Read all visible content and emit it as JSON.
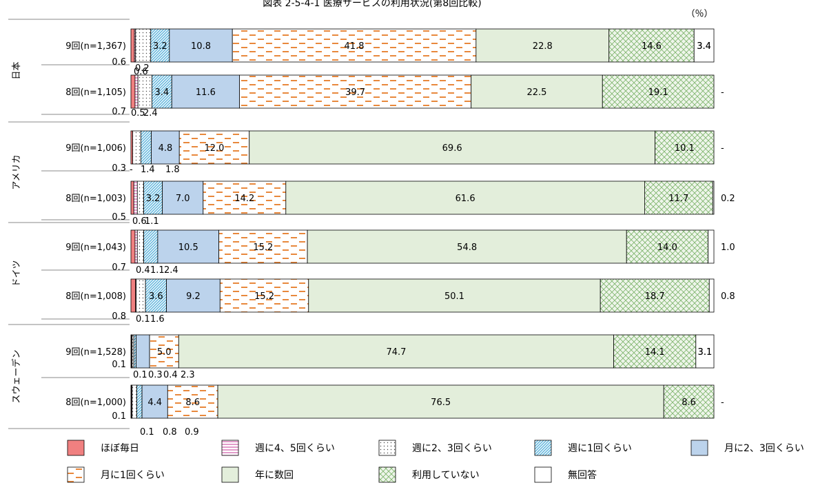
{
  "chart_data": {
    "type": "bar",
    "orientation": "horizontal",
    "stacked": "100%",
    "title": "図表 2-5-4-1 医療サービスの利用状況(第8回比較)",
    "unit_label": "（％）",
    "xlim": [
      0,
      100
    ],
    "legend_position": "bottom",
    "series": [
      {
        "name": "ほぼ毎日",
        "color": "#f08080",
        "pattern": "solid"
      },
      {
        "name": "週に4、5回くらい",
        "color": "#d05aa8",
        "pattern": "hlines"
      },
      {
        "name": "週に2、3回くらい",
        "color": "#555555",
        "pattern": "dots"
      },
      {
        "name": "週に1回くらい",
        "color": "#3fa7d6",
        "pattern": "diag"
      },
      {
        "name": "月に2、3回くらい",
        "color": "#bcd3ec",
        "pattern": "solid"
      },
      {
        "name": "月に1回くらい",
        "color": "#e8883c",
        "pattern": "dashes"
      },
      {
        "name": "年に数回",
        "color": "#e3eedb",
        "pattern": "solid"
      },
      {
        "name": "利用していない",
        "color": "#7cb36a",
        "pattern": "cross"
      },
      {
        "name": "無回答",
        "color": "#ffffff",
        "pattern": "none"
      }
    ],
    "groups": [
      {
        "country": "日本",
        "rows": [
          {
            "label": "9回(n=1,367)",
            "values": [
              0.6,
              0.2,
              2.6,
              3.2,
              10.8,
              41.8,
              22.8,
              14.6,
              3.4
            ],
            "labels": [
              "0.6",
              "0.2",
              "2.6",
              "3.2",
              "10.8",
              "41.8",
              "22.8",
              "14.6",
              "3.4"
            ]
          },
          {
            "label": "8回(n=1,105)",
            "values": [
              0.7,
              0.5,
              2.4,
              3.4,
              11.6,
              39.7,
              22.5,
              19.1,
              0
            ],
            "labels": [
              "0.7",
              "0.5",
              "2.4",
              "3.4",
              "11.6",
              "39.7",
              "22.5",
              "19.1",
              "-"
            ]
          }
        ]
      },
      {
        "country": "アメリカ",
        "rows": [
          {
            "label": "9回(n=1,006)",
            "values": [
              0.3,
              0,
              1.4,
              1.8,
              4.8,
              12.0,
              69.6,
              10.1,
              0
            ],
            "labels": [
              "0.3",
              "-",
              "1.4",
              "1.8",
              "4.8",
              "12.0",
              "69.6",
              "10.1",
              "-"
            ]
          },
          {
            "label": "8回(n=1,003)",
            "values": [
              0.5,
              0.6,
              1.1,
              3.2,
              7.0,
              14.2,
              61.6,
              11.7,
              0.2
            ],
            "labels": [
              "0.5",
              "0.6",
              "1.1",
              "3.2",
              "7.0",
              "14.2",
              "61.6",
              "11.7",
              "0.2"
            ]
          }
        ]
      },
      {
        "country": "ドイツ",
        "rows": [
          {
            "label": "9回(n=1,043)",
            "values": [
              0.7,
              0.4,
              1.1,
              2.4,
              10.5,
              15.2,
              54.8,
              14.0,
              1.0
            ],
            "labels": [
              "0.7",
              "0.4",
              "1.1",
              "2.4",
              "10.5",
              "15.2",
              "54.8",
              "14.0",
              "1.0"
            ]
          },
          {
            "label": "8回(n=1,008)",
            "values": [
              0.8,
              0.1,
              1.6,
              3.6,
              9.2,
              15.2,
              50.1,
              18.7,
              0.8
            ],
            "labels": [
              "0.8",
              "0.1",
              "1.6",
              "3.6",
              "9.2",
              "15.2",
              "50.1",
              "18.7",
              "0.8"
            ]
          }
        ]
      },
      {
        "country": "スウェーデン",
        "rows": [
          {
            "label": "9回(n=1,528)",
            "values": [
              0.1,
              0.1,
              0.3,
              0.4,
              2.3,
              5.0,
              74.7,
              14.1,
              3.1
            ],
            "labels": [
              "0.1",
              "0.1",
              "0.3",
              "0.4",
              "2.3",
              "5.0",
              "74.7",
              "14.1",
              "3.1"
            ]
          },
          {
            "label": "8回(n=1,000)",
            "values": [
              0.1,
              0.1,
              0.8,
              0.9,
              4.4,
              8.6,
              76.5,
              8.6,
              0
            ],
            "labels": [
              "0.1",
              "0.1",
              "0.8",
              "0.9",
              "4.4",
              "8.6",
              "76.5",
              "8.6",
              "-"
            ]
          }
        ]
      }
    ]
  }
}
